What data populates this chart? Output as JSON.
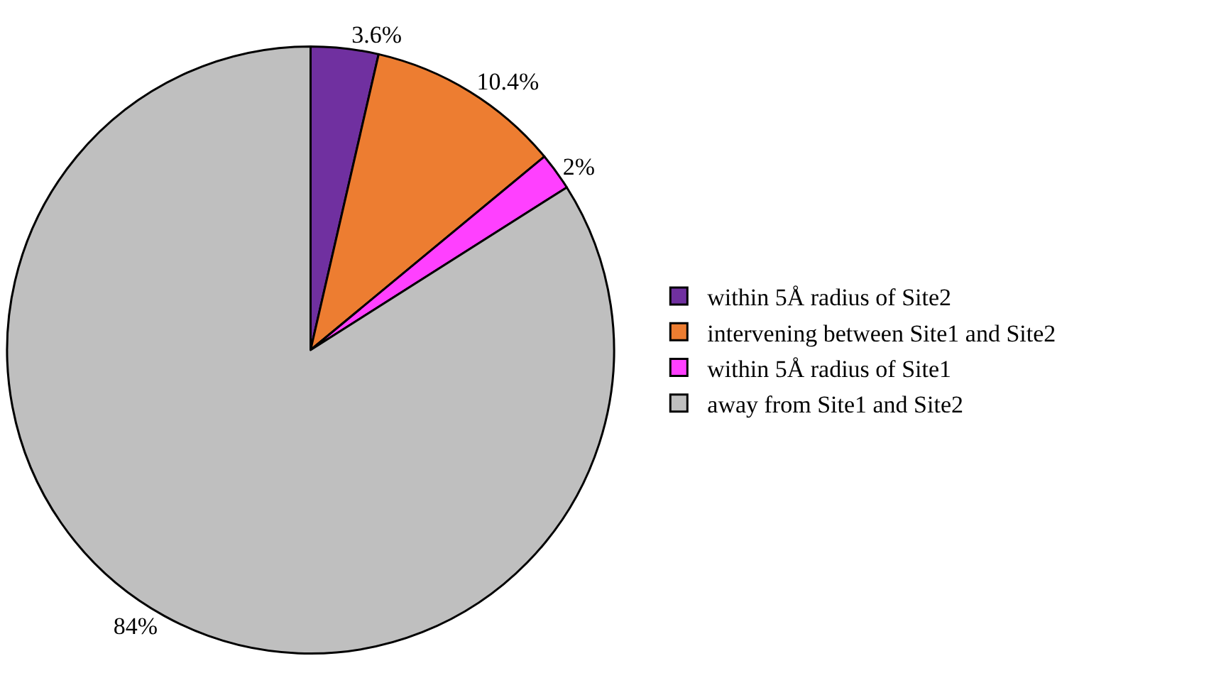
{
  "chart_data": {
    "type": "pie",
    "categories": [
      "within 5Å radius of Site2",
      "intervening between Site1 and Site2",
      "within 5Å radius of Site1",
      "away from Site1 and Site2"
    ],
    "values": [
      3.6,
      10.4,
      2,
      84
    ],
    "value_labels": [
      "3.6%",
      "10.4%",
      "2%",
      "84%"
    ],
    "colors": [
      "#7030a0",
      "#ed7d31",
      "#ff40ff",
      "#bfbfbf"
    ],
    "legend": "right"
  }
}
